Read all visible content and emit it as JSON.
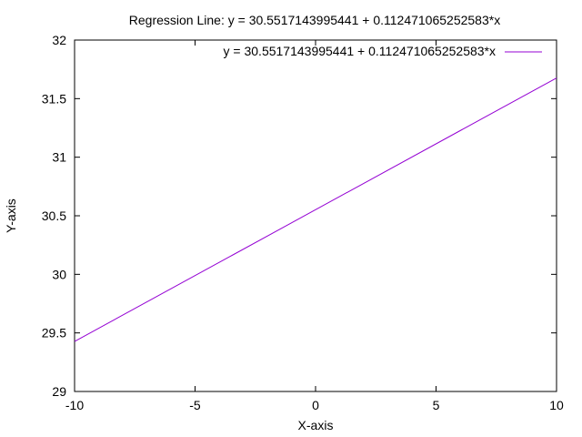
{
  "chart_data": {
    "type": "line",
    "title": "Regression Line: y = 30.5517143995441 + 0.112471065252583*x",
    "xlabel": "X-axis",
    "ylabel": "Y-axis",
    "xlim": [
      -10,
      10
    ],
    "ylim": [
      29,
      32
    ],
    "xticks": [
      -10,
      -5,
      0,
      5,
      10
    ],
    "yticks": [
      29,
      29.5,
      30,
      30.5,
      31,
      31.5,
      32
    ],
    "xtick_labels": [
      "-10",
      "-5",
      "0",
      "5",
      "10"
    ],
    "ytick_labels": [
      "29",
      "29.5",
      "30",
      "30.5",
      "31",
      "31.5",
      "32"
    ],
    "grid": false,
    "legend_position": "top-right",
    "series": [
      {
        "name": "y = 30.5517143995441 + 0.112471065252583*x",
        "color": "#9400d3",
        "x": [
          -10,
          10
        ],
        "y": [
          29.427003747,
          31.676425052
        ]
      }
    ]
  }
}
